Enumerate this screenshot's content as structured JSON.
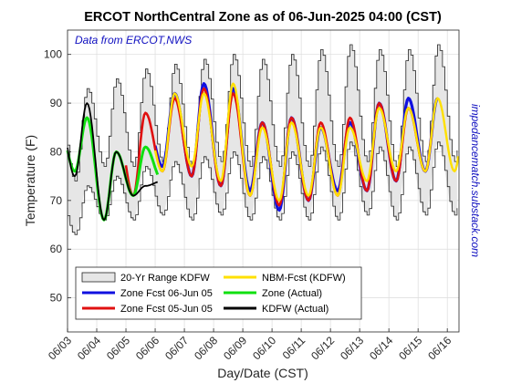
{
  "chart_data": {
    "type": "line",
    "title": "ERCOT NorthCentral Zone as of 06-Jun-2025 04:00 (CST)",
    "source_note": "Data from ERCOT,NWS",
    "watermark": "impedancematch.substack.com",
    "xlabel": "Day/Date (CST)",
    "ylabel": "Temperature (F)",
    "xlim": [
      0,
      13.4
    ],
    "ylim": [
      43,
      105
    ],
    "x_ticks": [
      "06/03",
      "06/04",
      "06/05",
      "06/06",
      "06/07",
      "06/08",
      "06/09",
      "06/10",
      "06/11",
      "06/12",
      "06/13",
      "06/14",
      "06/15",
      "06/16"
    ],
    "y_ticks": [
      50,
      60,
      70,
      80,
      90,
      100
    ],
    "grid": true,
    "legend_location": "bottom-left",
    "band": {
      "name": "20-Yr Range KDFW",
      "color": "#e6e6e6",
      "min_lows": [
        63,
        66,
        66,
        67,
        66,
        67,
        66,
        66,
        66,
        66,
        67,
        66,
        67
      ],
      "max_highs": [
        93,
        95,
        97,
        98,
        99,
        100,
        99,
        100,
        101,
        102,
        101,
        101,
        102
      ]
    },
    "series": [
      {
        "name": "Zone Fcst 06-Jun 05",
        "color": "#1010e0",
        "lows": [
          73,
          74,
          72,
          77,
          75,
          73,
          72,
          68,
          70,
          72,
          72,
          74,
          76
        ],
        "highs": [
          87,
          87,
          88,
          92,
          94,
          93,
          86,
          87,
          85,
          86,
          90,
          91,
          91
        ],
        "x_range": [
          3.0,
          12.7
        ]
      },
      {
        "name": "Zone Fcst 05-Jun 05",
        "color": "#e01010",
        "lows": [
          73,
          74,
          71,
          76,
          75,
          73,
          71,
          69,
          70,
          71,
          72,
          74,
          76
        ],
        "highs": [
          87,
          87,
          88,
          91,
          93,
          92,
          86,
          87,
          86,
          87,
          90,
          89,
          91
        ],
        "x_range": [
          2.0,
          12.5
        ]
      },
      {
        "name": "NBM-Fcst (KDFW)",
        "color": "#ffe000",
        "lows": [
          74,
          74,
          71,
          76,
          77,
          74,
          71,
          70,
          71,
          71,
          74,
          76,
          76
        ],
        "highs": [
          87,
          87,
          87,
          92,
          92,
          94,
          85,
          86,
          85,
          85,
          89,
          89,
          91
        ],
        "x_range": [
          3.0,
          13.4
        ]
      },
      {
        "name": "Zone (Actual)",
        "color": "#10e010",
        "lows": [
          76,
          66,
          71,
          74
        ],
        "highs": [
          87,
          80,
          81,
          80
        ],
        "x_range": [
          0.0,
          3.1
        ]
      },
      {
        "name": "KDFW (Actual)",
        "color": "#000000",
        "lows": [
          75,
          66,
          71,
          74
        ],
        "highs": [
          90,
          80,
          73,
          80
        ],
        "x_range": [
          0.0,
          3.1
        ]
      }
    ]
  }
}
